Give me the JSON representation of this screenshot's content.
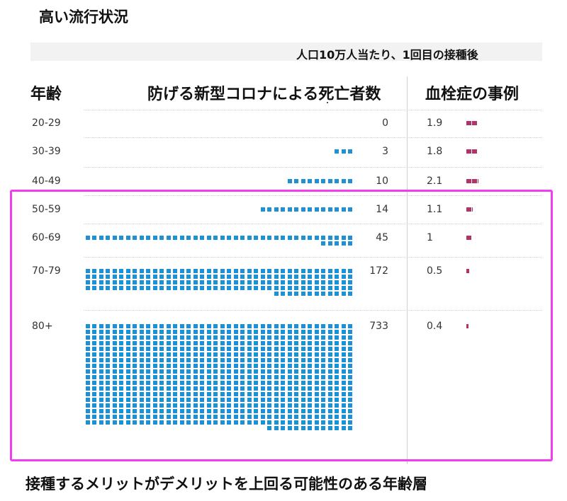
{
  "title": "高い流行状況",
  "subtitle": "人口10万人当たり、1回目の接種後",
  "headers": {
    "age": "年齢",
    "deaths": "防げる新型コロナによる死亡者数",
    "clots": "血栓症の事例"
  },
  "caption": "接種するメリットがデメリットを上回る可能性のある年齢層",
  "colors": {
    "deaths": "#1e90d6",
    "clots": "#b0336a",
    "highlight": "#ee3ef0"
  },
  "chart_data": {
    "type": "table",
    "title": "高い流行状況",
    "subtitle": "人口10万人当たり、1回目の接種後",
    "columns": [
      "年齢",
      "防げる新型コロナによる死亡者数",
      "血栓症の事例"
    ],
    "rows": [
      {
        "age": "20-29",
        "deaths": 0,
        "clots": 1.9
      },
      {
        "age": "30-39",
        "deaths": 3,
        "clots": 1.8
      },
      {
        "age": "40-49",
        "deaths": 10,
        "clots": 2.1
      },
      {
        "age": "50-59",
        "deaths": 14,
        "clots": 1.1
      },
      {
        "age": "60-69",
        "deaths": 45,
        "clots": 1
      },
      {
        "age": "70-79",
        "deaths": 172,
        "clots": 0.5
      },
      {
        "age": "80+",
        "deaths": 733,
        "clots": 0.4
      }
    ]
  }
}
